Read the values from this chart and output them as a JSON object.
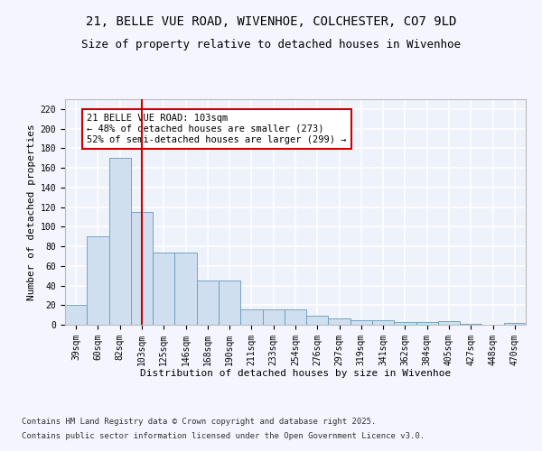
{
  "title": "21, BELLE VUE ROAD, WIVENHOE, COLCHESTER, CO7 9LD",
  "subtitle": "Size of property relative to detached houses in Wivenhoe",
  "xlabel": "Distribution of detached houses by size in Wivenhoe",
  "ylabel": "Number of detached properties",
  "categories": [
    "39sqm",
    "60sqm",
    "82sqm",
    "103sqm",
    "125sqm",
    "146sqm",
    "168sqm",
    "190sqm",
    "211sqm",
    "233sqm",
    "254sqm",
    "276sqm",
    "297sqm",
    "319sqm",
    "341sqm",
    "362sqm",
    "384sqm",
    "405sqm",
    "427sqm",
    "448sqm",
    "470sqm"
  ],
  "values": [
    20,
    90,
    170,
    115,
    74,
    74,
    45,
    45,
    16,
    16,
    16,
    9,
    6,
    5,
    5,
    3,
    3,
    4,
    1,
    0,
    2
  ],
  "bar_color": "#cfdff0",
  "bar_edge_color": "#6699bb",
  "highlight_bar_index": 3,
  "highlight_line_color": "#cc0000",
  "annotation_text": "21 BELLE VUE ROAD: 103sqm\n← 48% of detached houses are smaller (273)\n52% of semi-detached houses are larger (299) →",
  "annotation_box_facecolor": "#ffffff",
  "annotation_box_edgecolor": "#cc0000",
  "ylim": [
    0,
    230
  ],
  "yticks": [
    0,
    20,
    40,
    60,
    80,
    100,
    120,
    140,
    160,
    180,
    200,
    220
  ],
  "footer_line1": "Contains HM Land Registry data © Crown copyright and database right 2025.",
  "footer_line2": "Contains public sector information licensed under the Open Government Licence v3.0.",
  "bg_color": "#eef2fb",
  "plot_bg_color": "#eef2fb",
  "grid_color": "#ffffff",
  "fig_bg_color": "#f5f5ff",
  "title_fontsize": 10,
  "subtitle_fontsize": 9,
  "axis_label_fontsize": 8,
  "tick_fontsize": 7,
  "annotation_fontsize": 7.5,
  "footer_fontsize": 6.5
}
